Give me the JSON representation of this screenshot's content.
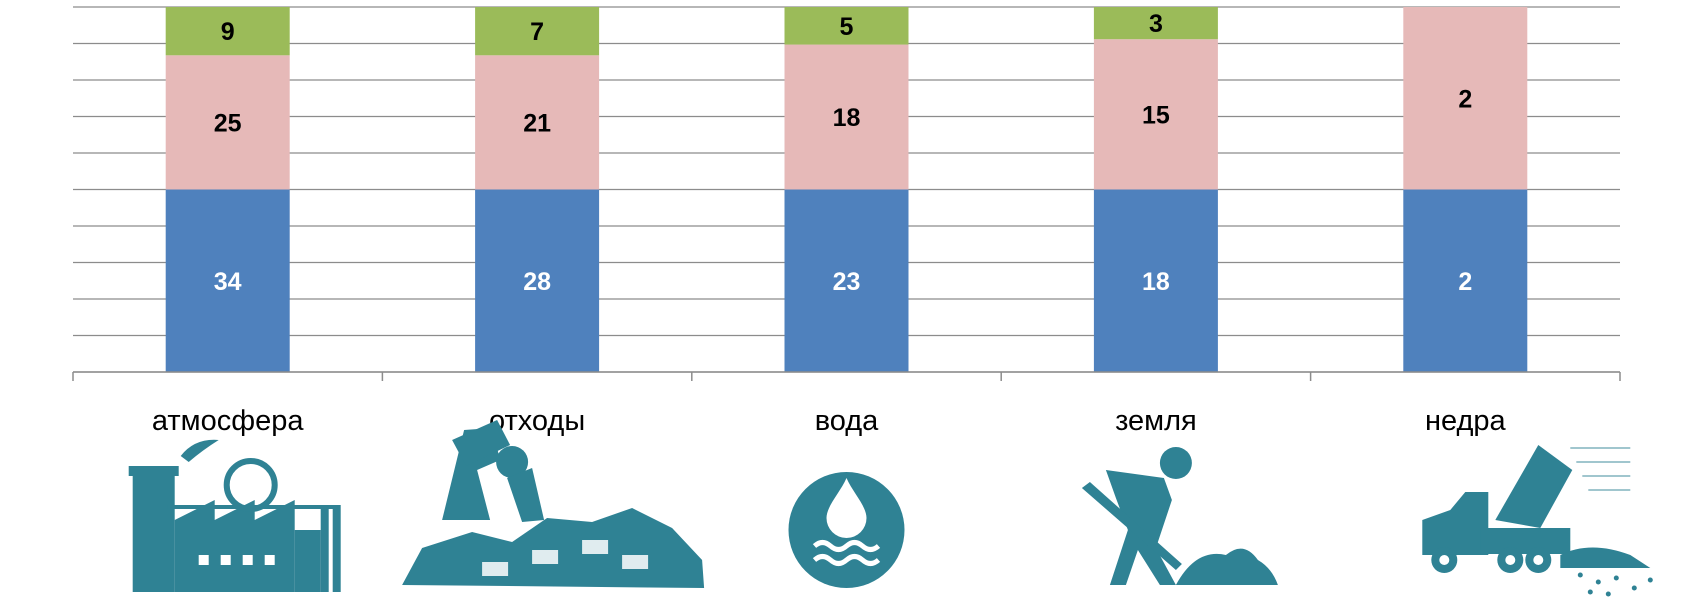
{
  "chart_data": {
    "type": "bar",
    "stacked": true,
    "title": "",
    "xlabel": "",
    "ylabel": "",
    "grid": true,
    "ylim": [
      0,
      68
    ],
    "categories": [
      "атмосфера",
      "отходы",
      "вода",
      "земля",
      "недра"
    ],
    "series": [
      {
        "color": "#4f81bd",
        "label_color": "#ffffff",
        "values": [
          34,
          28,
          23,
          18,
          2
        ]
      },
      {
        "color": "#e6b9b8",
        "label_color": "#000000",
        "values": [
          25,
          21,
          18,
          15,
          2
        ]
      },
      {
        "color": "#9bbb59",
        "label_color": "#000000",
        "values": [
          9,
          7,
          5,
          3,
          0
        ]
      }
    ],
    "display_heights": [
      [
        34,
        34,
        34,
        34,
        34
      ],
      [
        25,
        25,
        27,
        28,
        34
      ],
      [
        9,
        9,
        7,
        6,
        0
      ]
    ],
    "icons": [
      "factory-icon",
      "garbage-dump-icon",
      "water-drop-icon",
      "digging-worker-icon",
      "dump-truck-icon"
    ]
  }
}
